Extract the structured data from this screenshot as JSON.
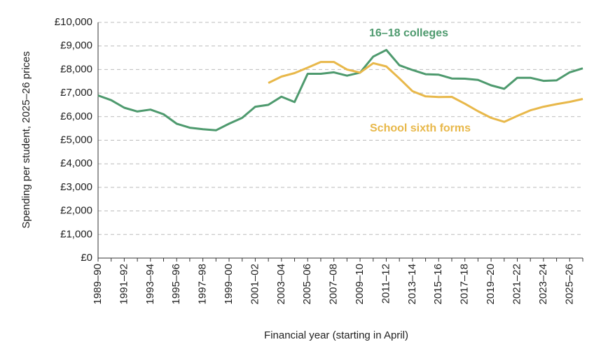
{
  "chart_data": {
    "type": "line",
    "y_label": "Spending per student, 2025–26 prices",
    "x_label": "Financial year (starting in April)",
    "categories": [
      "1989–90",
      null,
      "1991–92",
      null,
      "1993–94",
      null,
      "1995–96",
      null,
      "1997–98",
      null,
      "1999–00",
      null,
      "2001–02",
      null,
      "2003–04",
      null,
      "2005–06",
      null,
      "2007–08",
      null,
      "2009–10",
      null,
      "2011–12",
      null,
      "2013–14",
      null,
      "2015–16",
      null,
      "2017–18",
      null,
      "2019–20",
      null,
      "2021–22",
      null,
      "2023–24",
      null,
      "2025–26",
      null
    ],
    "series": [
      {
        "name": "16–18 colleges",
        "color": "#4e9a6e",
        "values": [
          6900,
          6700,
          6380,
          6220,
          6300,
          6100,
          5700,
          5530,
          5470,
          5420,
          5700,
          5950,
          6420,
          6500,
          6850,
          6620,
          7820,
          7820,
          7880,
          7740,
          7870,
          8550,
          8830,
          8180,
          7980,
          7800,
          7780,
          7620,
          7610,
          7560,
          7330,
          7180,
          7650,
          7650,
          7520,
          7540,
          7880,
          8050
        ]
      },
      {
        "name": "School sixth forms",
        "color": "#e8b84a",
        "values": [
          null,
          null,
          null,
          null,
          null,
          null,
          null,
          null,
          null,
          null,
          null,
          null,
          null,
          7430,
          7700,
          7850,
          8080,
          8320,
          8320,
          8000,
          7870,
          8270,
          8130,
          7620,
          7080,
          6860,
          6830,
          6840,
          6550,
          6230,
          5950,
          5780,
          6030,
          6270,
          6420,
          6530,
          6630,
          6750
        ]
      }
    ],
    "ylim": [
      0,
      10000
    ],
    "yticks": [
      {
        "value": 0,
        "label": "£0"
      },
      {
        "value": 1000,
        "label": "£1,000"
      },
      {
        "value": 2000,
        "label": "£2,000"
      },
      {
        "value": 3000,
        "label": "£3,000"
      },
      {
        "value": 4000,
        "label": "£4,000"
      },
      {
        "value": 5000,
        "label": "£5,000"
      },
      {
        "value": 6000,
        "label": "£6,000"
      },
      {
        "value": 7000,
        "label": "£7,000"
      },
      {
        "value": 8000,
        "label": "£8,000"
      },
      {
        "value": 9000,
        "label": "£9,000"
      },
      {
        "value": 10000,
        "label": "£10,000"
      }
    ],
    "grid": true
  }
}
